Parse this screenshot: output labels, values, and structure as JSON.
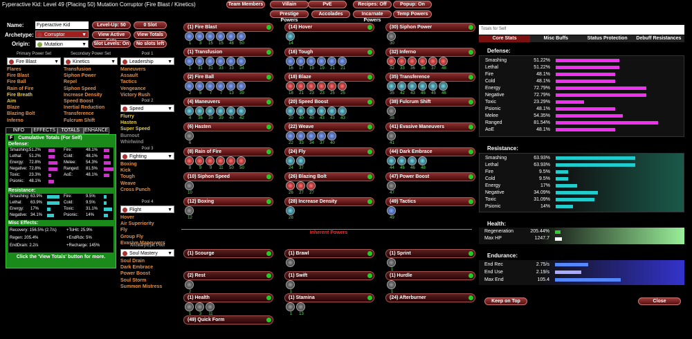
{
  "window_title": "Fyperactive Kid: Level 49 (Placing 50) Mutation Corruptor (Fire Blast / Kinetics)",
  "top_buttons": [
    "Team Members",
    "Villain",
    "PvE",
    "Recipes: Off",
    "Popup: On",
    "Prestige Powers",
    "Accolades",
    "Incarnate Powers",
    "Temp Powers"
  ],
  "build": {
    "name_label": "Name:",
    "name": "Fyperactive Kid",
    "archetype_label": "Archetype:",
    "archetype": "Corruptor",
    "origin_label": "Origin:",
    "origin": "Mutation",
    "level_btn": "Level-Up: 50",
    "slot_btn": "0 Slot",
    "view_active": "View Active Sets",
    "view_totals": "View Totals",
    "slot_levels": "Slot Levels: On",
    "no_slots": "No slots left"
  },
  "primary": {
    "title": "Primary Power Set",
    "set": "Fire Blast",
    "powers": [
      "Flares",
      "Fire Blast",
      "Fire Ball",
      "Rain of Fire",
      "Fire Breath",
      "Aim",
      "Blaze",
      "Blazing Bolt",
      "Inferno"
    ]
  },
  "secondary": {
    "title": "Secondary Power Set",
    "set": "Kinetics",
    "powers": [
      "Transfusion",
      "Siphon Power",
      "Repel",
      "Siphon Speed",
      "Increase Density",
      "Speed Boost",
      "Inertial Reduction",
      "Transference",
      "Fulcrum Shift"
    ]
  },
  "pool1": {
    "title": "Pool 1",
    "set": "Leadership",
    "powers": [
      "Maneuvers",
      "Assault",
      "Tactics",
      "Vengeance",
      "Victory Rush"
    ]
  },
  "pool2": {
    "title": "Pool 2",
    "set": "Speed",
    "powers": [
      "Flurry",
      "Hasten",
      "Super Speed",
      "Burnout",
      "Whirlwind"
    ]
  },
  "pool3": {
    "title": "Pool 3",
    "set": "Fighting",
    "powers": [
      "Boxing",
      "Kick",
      "Tough",
      "Weave",
      "Cross Punch"
    ]
  },
  "pool4": {
    "title": "Pool 4",
    "set": "Flight",
    "powers": [
      "Hover",
      "Air Superiority",
      "Fly",
      "Group Fly",
      "Evasive Maneuvers"
    ]
  },
  "ancillary": {
    "title": "Ancillary/Epic Pool",
    "set": "Soul Mastery",
    "powers": [
      "Soul Drain",
      "Dark Embrace",
      "Power Boost",
      "Soul Storm",
      "Summon Mistress"
    ]
  },
  "tabs": [
    "INFO",
    "EFFECTS",
    "TOTALS",
    "ENHANCE"
  ],
  "totals_box": {
    "f": "F",
    "title": "Cumulative Totals (For Self)",
    "defense_h": "Defense:",
    "resist_h": "Resistance:",
    "misc_h": "Misc Effects:",
    "footer": "Click the 'View Totals' button for more.",
    "def_left": [
      [
        "Smashing:",
        "51.2%"
      ],
      [
        "Lethal:",
        "51.2%"
      ],
      [
        "Energy:",
        "72.8%"
      ],
      [
        "Negative:",
        "72.8%"
      ],
      [
        "Toxic:",
        "23.3%"
      ],
      [
        "Psionic:",
        "48.1%"
      ]
    ],
    "def_right": [
      [
        "Fire:",
        "48.1%"
      ],
      [
        "Cold:",
        "48.1%"
      ],
      [
        "Melee:",
        "54.3%"
      ],
      [
        "Ranged:",
        "81.5%"
      ],
      [
        "AoE:",
        "48.1%"
      ]
    ],
    "res_left": [
      [
        "Smashing:",
        "63.9%"
      ],
      [
        "Lethal:",
        "63.9%"
      ],
      [
        "Energy:",
        "17%"
      ],
      [
        "Negative:",
        "34.1%"
      ]
    ],
    "res_right": [
      [
        "Fire:",
        "9.5%"
      ],
      [
        "Cold:",
        "9.5%"
      ],
      [
        "Toxic:",
        "31.1%"
      ],
      [
        "Psionic:",
        "14%"
      ]
    ],
    "misc": [
      [
        "Recovery: 156.5% (2.7/s)",
        "+ToHit: 25.9%"
      ],
      [
        "Regen: 205.4%",
        "+EndRdx: 5%"
      ],
      [
        "EndDrain: 2.2/s",
        "+Recharge: 145%"
      ]
    ]
  },
  "powers_col1": [
    {
      "name": "(1) Fire Blast",
      "slots": [
        "1",
        "3",
        "15",
        "15",
        "48",
        "50"
      ],
      "c": "blue"
    },
    {
      "name": "(1) Transfusion",
      "slots": [
        "1",
        "31",
        "31",
        "33",
        "33",
        "34"
      ],
      "c": "blue"
    },
    {
      "name": "(2) Fire Ball",
      "slots": [
        "2",
        "5",
        "7",
        "7",
        "13",
        "39"
      ],
      "c": "blue"
    },
    {
      "name": "(4) Maneuvers",
      "slots": [
        "4",
        "36",
        "39",
        "39",
        "40",
        "42"
      ],
      "c": "teal"
    },
    {
      "name": "(6) Hasten",
      "slots": [
        "6"
      ],
      "c": "grey"
    },
    {
      "name": "(8) Rain of Fire",
      "slots": [
        "8",
        "9",
        "9",
        "11",
        "50",
        "50"
      ],
      "c": "red"
    },
    {
      "name": "(10) Siphon Speed",
      "slots": [
        "10"
      ],
      "c": "grey"
    },
    {
      "name": "(12) Boxing",
      "slots": [
        "12"
      ],
      "c": "grey"
    }
  ],
  "powers_col2": [
    {
      "name": "(14) Hover",
      "slots": [
        "14"
      ],
      "c": "teal"
    },
    {
      "name": "(16) Tough",
      "slots": [
        "16",
        "17",
        "19",
        "19",
        "21",
        "21"
      ],
      "c": "blue"
    },
    {
      "name": "(18) Blaze",
      "slots": [
        "18",
        "21",
        "23",
        "23",
        "25",
        "25"
      ],
      "c": "red"
    },
    {
      "name": "(20) Speed Boost",
      "slots": [
        "20",
        "40",
        "40",
        "43",
        "43",
        "43"
      ],
      "c": "teal"
    },
    {
      "name": "(22) Weave",
      "slots": [
        "22",
        "33",
        "34",
        "37",
        "40"
      ],
      "c": "blue"
    },
    {
      "name": "(24) Fly",
      "slots": [
        "24",
        "37"
      ],
      "c": "teal"
    },
    {
      "name": "(26) Blazing Bolt",
      "slots": [
        "26",
        "27",
        "27"
      ],
      "c": "red"
    },
    {
      "name": "(28) Increase Density",
      "slots": [
        "28"
      ],
      "c": "teal"
    }
  ],
  "powers_col3": [
    {
      "name": "(30) Siphon Power",
      "slots": [
        "30"
      ],
      "c": "grey"
    },
    {
      "name": "(32) Inferno",
      "slots": [
        "32",
        "33",
        "36",
        "36",
        "37",
        "48"
      ],
      "c": "red"
    },
    {
      "name": "(35) Transference",
      "slots": [
        "35",
        "42",
        "43",
        "45",
        "45",
        "46"
      ],
      "c": "teal"
    },
    {
      "name": "(38) Fulcrum Shift",
      "slots": [
        "38"
      ],
      "c": "grey"
    },
    {
      "name": "(41) Evasive Maneuvers",
      "slots": [
        "41"
      ],
      "c": "grey"
    },
    {
      "name": "(44) Dark Embrace",
      "slots": [
        "44",
        "46",
        "46",
        "48"
      ],
      "c": "teal"
    },
    {
      "name": "(47) Power Boost",
      "slots": [
        "47"
      ],
      "c": "grey"
    },
    {
      "name": "(49) Tactics",
      "slots": [
        "49"
      ],
      "c": "blue"
    }
  ],
  "inherent_title": "Inherent Powers",
  "inherent": [
    {
      "name": "(1) Scourge",
      "slots": [],
      "col": 0,
      "row": 0
    },
    {
      "name": "(1) Brawl",
      "slots": [
        ""
      ],
      "col": 1,
      "row": 0
    },
    {
      "name": "(1) Sprint",
      "slots": [
        "1"
      ],
      "col": 2,
      "row": 0
    },
    {
      "name": "(2) Rest",
      "slots": [
        "2"
      ],
      "col": 0,
      "row": 1
    },
    {
      "name": "(1) Swift",
      "slots": [
        "1"
      ],
      "col": 1,
      "row": 1
    },
    {
      "name": "(1) Hurdle",
      "slots": [
        "1"
      ],
      "col": 2,
      "row": 1
    },
    {
      "name": "(1) Health",
      "slots": [
        "1",
        "3",
        "11"
      ],
      "col": 0,
      "row": 2
    },
    {
      "name": "(1) Stamina",
      "slots": [
        "1",
        "13"
      ],
      "col": 1,
      "row": 2
    },
    {
      "name": "(24) Afterburner",
      "slots": [],
      "col": 2,
      "row": 2
    },
    {
      "name": "(49) Quick Form",
      "slots": [],
      "col": 0,
      "row": 3
    }
  ],
  "right": {
    "search": "Totals for Self",
    "tabs": [
      "Core Stats",
      "Misc Buffs",
      "Status Protection",
      "Debuff Resistances"
    ],
    "def_h": "Defense:",
    "res_h": "Resistance:",
    "health_h": "Health:",
    "end_h": "Endurance:",
    "defense": [
      [
        "Smashing",
        "51.22%",
        0.51
      ],
      [
        "Lethal",
        "51.22%",
        0.51
      ],
      [
        "Fire",
        "48.1%",
        0.48
      ],
      [
        "Cold",
        "48.1%",
        0.48
      ],
      [
        "Energy",
        "72.79%",
        0.73
      ],
      [
        "Negative",
        "72.79%",
        0.73
      ],
      [
        "Toxic",
        "23.29%",
        0.23
      ],
      [
        "Psionic",
        "48.1%",
        0.48
      ],
      [
        "Melee",
        "54.35%",
        0.54
      ],
      [
        "Ranged",
        "81.54%",
        0.82
      ],
      [
        "AoE",
        "48.1%",
        0.48
      ]
    ],
    "resistance": [
      [
        "Smashing",
        "63.93%",
        0.64
      ],
      [
        "Lethal",
        "63.93%",
        0.64
      ],
      [
        "Fire",
        "9.5%",
        0.1
      ],
      [
        "Cold",
        "9.5%",
        0.1
      ],
      [
        "Energy",
        "17%",
        0.17
      ],
      [
        "Negative",
        "34.09%",
        0.34
      ],
      [
        "Toxic",
        "31.09%",
        0.31
      ],
      [
        "Psionic",
        "14%",
        0.14
      ]
    ],
    "health": [
      [
        "Regeneration",
        "205.44%"
      ],
      [
        "Max HP",
        "1247.7"
      ]
    ],
    "endurance": [
      [
        "End Rec",
        "2.75/s"
      ],
      [
        "End Use",
        "2.19/s"
      ],
      [
        "Max End",
        "105.4"
      ]
    ],
    "keep_on_top": "Keep on Top",
    "close": "Close"
  }
}
